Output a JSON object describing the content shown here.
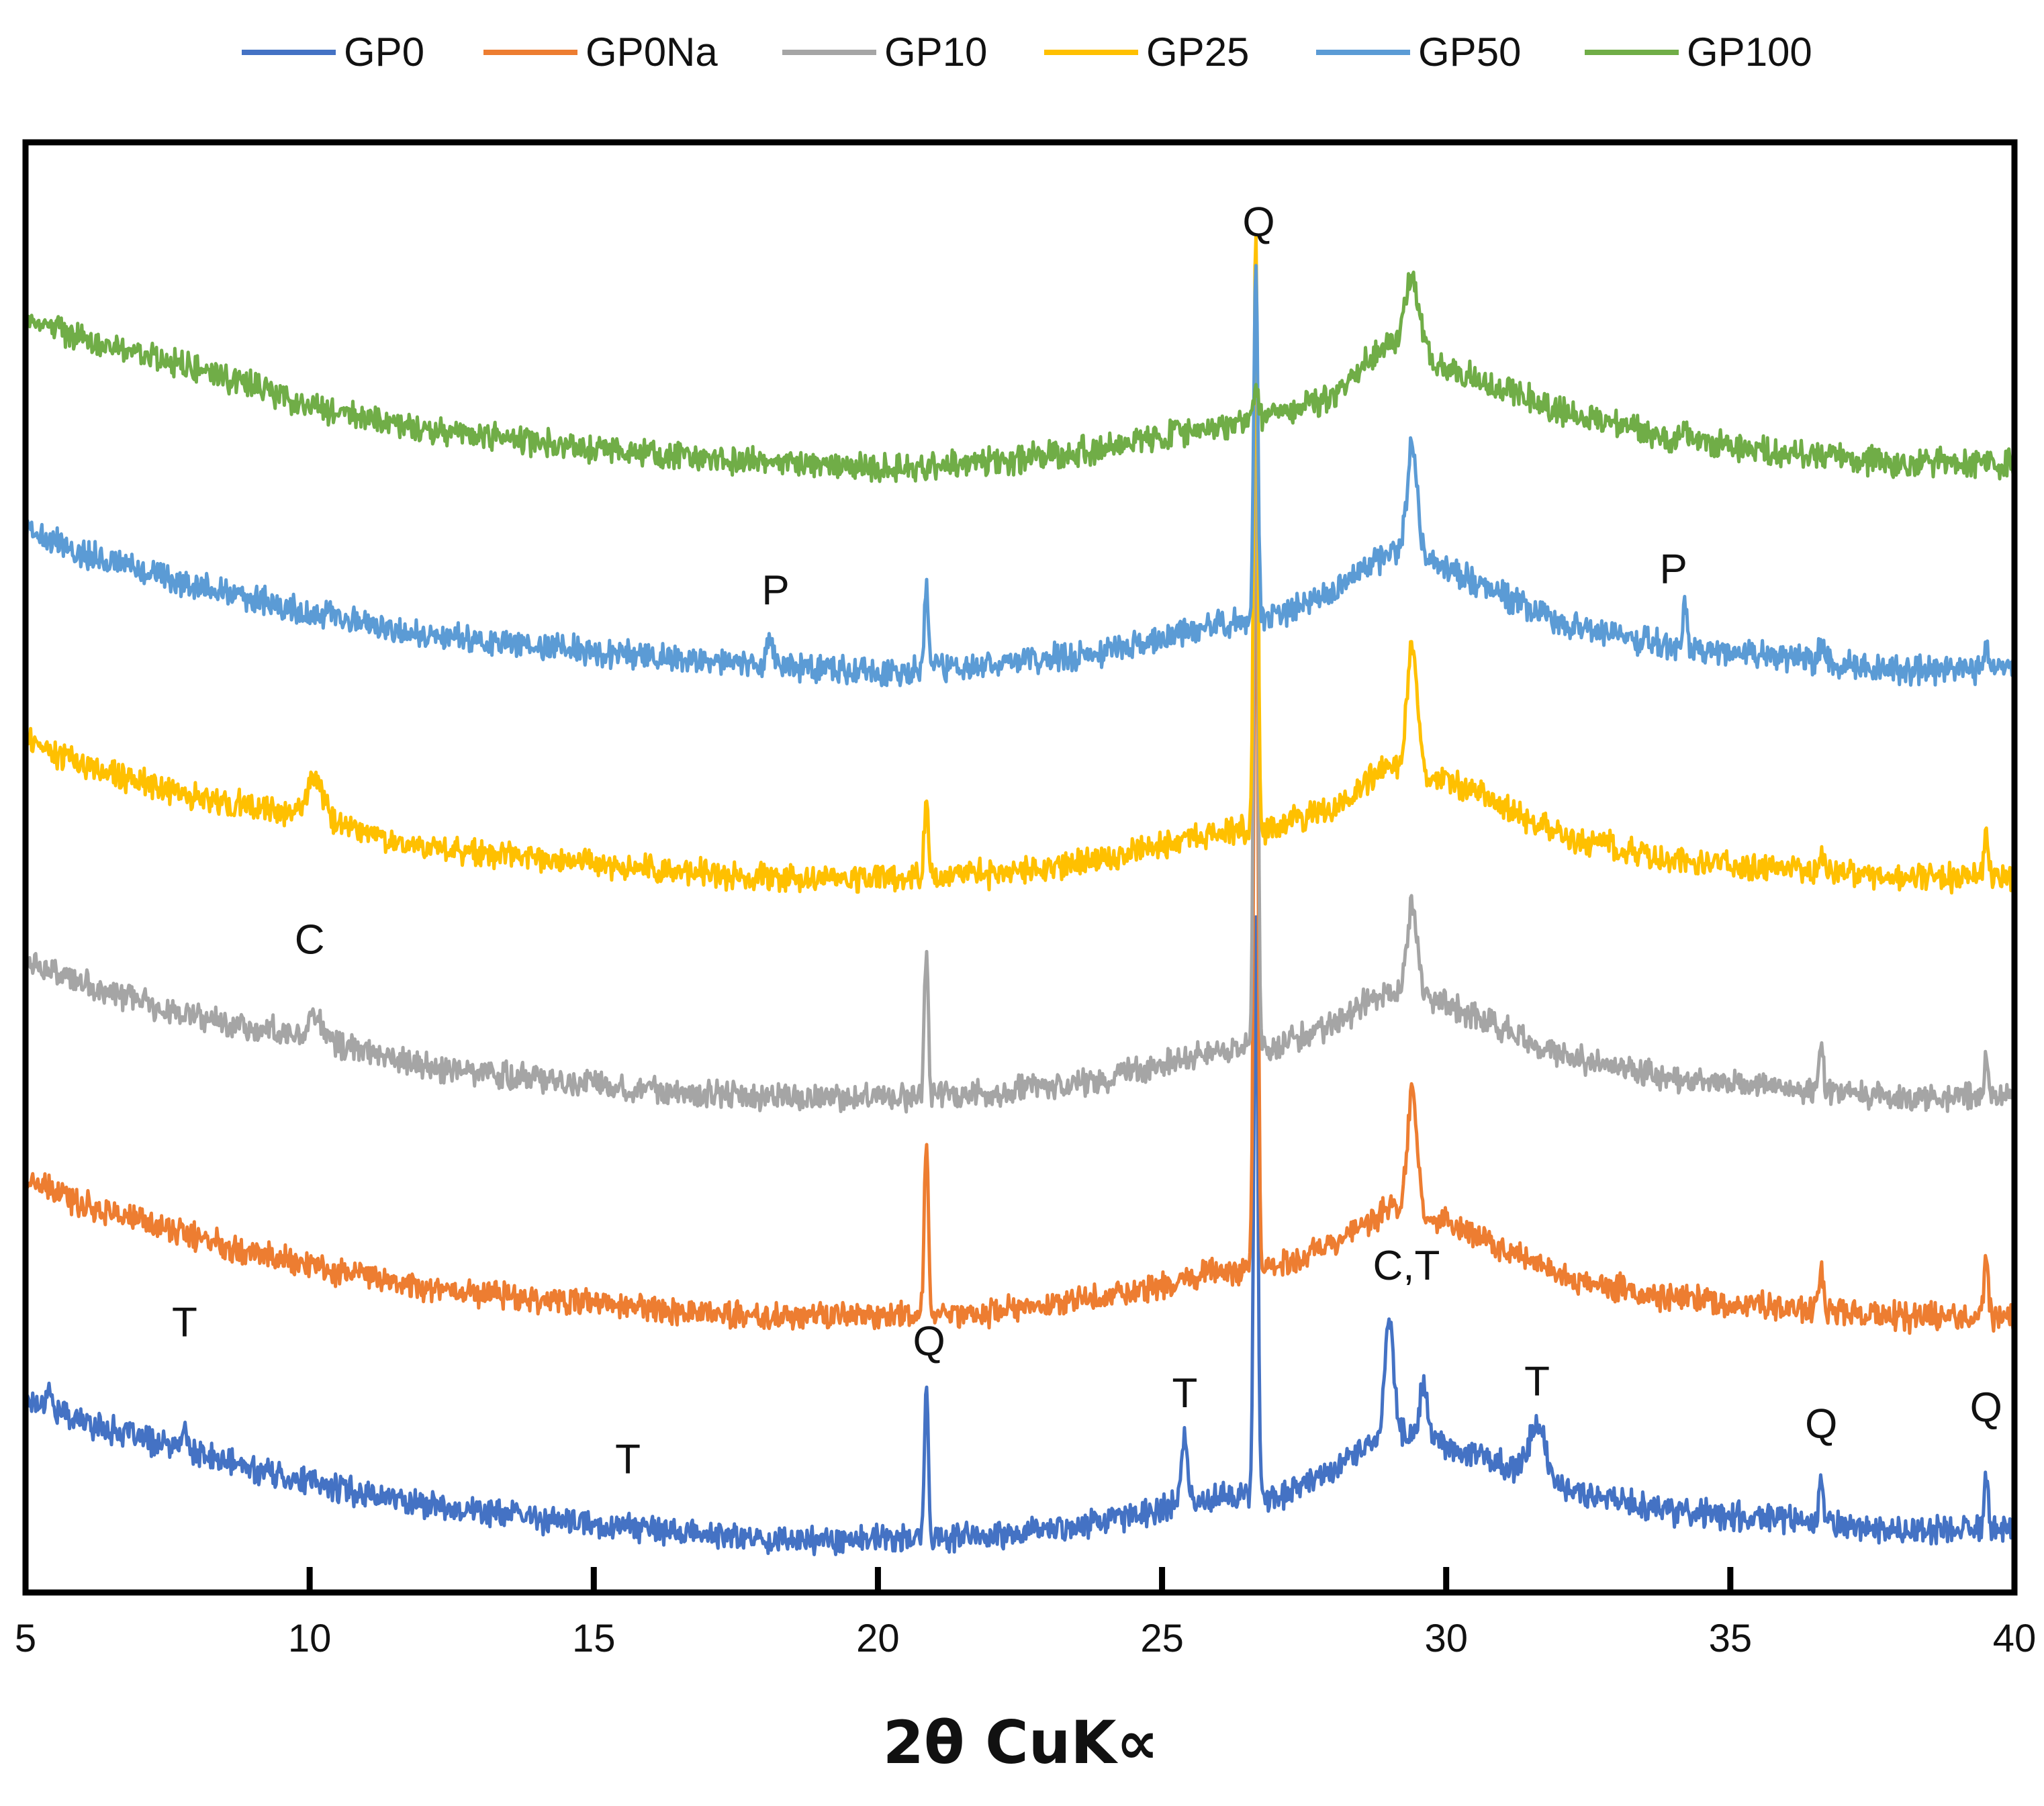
{
  "chart_data": {
    "type": "line",
    "title": "",
    "xlabel": "2θ CuK∝",
    "ylabel": "",
    "xlim": [
      5,
      40
    ],
    "ylim": [
      0,
      6
    ],
    "xticks": [
      5,
      10,
      15,
      20,
      25,
      30,
      35,
      40
    ],
    "xtick_labels": [
      "5",
      "10",
      "15",
      "20",
      "25",
      "30",
      "35",
      "40"
    ],
    "yaxis": "stacked intensity, no tick labels",
    "grid": false,
    "legend_position": "top",
    "series": [
      {
        "name": "GP0",
        "color": "#4472C4",
        "offset": 0.0,
        "baseline": [
          [
            5,
            0.72
          ],
          [
            6,
            0.62
          ],
          [
            8,
            0.48
          ],
          [
            10,
            0.36
          ],
          [
            12,
            0.27
          ],
          [
            15,
            0.18
          ],
          [
            18,
            0.12
          ],
          [
            20,
            0.12
          ],
          [
            22,
            0.13
          ],
          [
            24,
            0.2
          ],
          [
            26,
            0.3
          ],
          [
            27,
            0.3
          ],
          [
            28,
            0.42
          ],
          [
            29,
            0.58
          ],
          [
            30,
            0.52
          ],
          [
            32,
            0.34
          ],
          [
            34,
            0.24
          ],
          [
            36,
            0.2
          ],
          [
            38,
            0.16
          ],
          [
            40,
            0.17
          ]
        ],
        "peaks": [
          [
            5.4,
            0.1,
            0.08
          ],
          [
            7.8,
            0.08,
            0.12
          ],
          [
            15.6,
            0.05,
            0.1
          ],
          [
            20.85,
            0.62,
            0.07
          ],
          [
            25.4,
            0.28,
            0.12
          ],
          [
            26.65,
            2.5,
            0.07
          ],
          [
            29.0,
            0.48,
            0.15
          ],
          [
            29.6,
            0.22,
            0.15
          ],
          [
            31.6,
            0.22,
            0.3
          ],
          [
            36.6,
            0.2,
            0.07
          ],
          [
            39.5,
            0.25,
            0.07
          ]
        ]
      },
      {
        "name": "GP0Na",
        "color": "#ED7D31",
        "offset": 0.92,
        "baseline": [
          [
            5,
            0.72
          ],
          [
            6,
            0.62
          ],
          [
            8,
            0.48
          ],
          [
            10,
            0.36
          ],
          [
            12,
            0.27
          ],
          [
            15,
            0.2
          ],
          [
            18,
            0.14
          ],
          [
            20,
            0.15
          ],
          [
            22,
            0.16
          ],
          [
            24,
            0.22
          ],
          [
            26,
            0.34
          ],
          [
            27,
            0.35
          ],
          [
            28,
            0.45
          ],
          [
            29,
            0.6
          ],
          [
            30,
            0.54
          ],
          [
            32,
            0.32
          ],
          [
            34,
            0.22
          ],
          [
            36,
            0.18
          ],
          [
            38,
            0.14
          ],
          [
            40,
            0.15
          ]
        ],
        "peaks": [
          [
            20.85,
            0.72,
            0.07
          ],
          [
            26.65,
            3.5,
            0.07
          ],
          [
            29.4,
            0.5,
            0.18
          ],
          [
            36.6,
            0.2,
            0.07
          ],
          [
            39.5,
            0.28,
            0.07
          ]
        ]
      },
      {
        "name": "GP10",
        "color": "#A5A5A5",
        "offset": 1.85,
        "baseline": [
          [
            5,
            0.72
          ],
          [
            6,
            0.62
          ],
          [
            8,
            0.48
          ],
          [
            10,
            0.4
          ],
          [
            12,
            0.27
          ],
          [
            15,
            0.2
          ],
          [
            18,
            0.14
          ],
          [
            20,
            0.14
          ],
          [
            22,
            0.16
          ],
          [
            24,
            0.22
          ],
          [
            26,
            0.34
          ],
          [
            27,
            0.35
          ],
          [
            28,
            0.45
          ],
          [
            29,
            0.6
          ],
          [
            30,
            0.54
          ],
          [
            32,
            0.32
          ],
          [
            34,
            0.22
          ],
          [
            36,
            0.18
          ],
          [
            38,
            0.14
          ],
          [
            40,
            0.15
          ]
        ],
        "peaks": [
          [
            10.1,
            0.12,
            0.2
          ],
          [
            20.85,
            0.58,
            0.07
          ],
          [
            26.65,
            3.0,
            0.07
          ],
          [
            29.4,
            0.38,
            0.18
          ],
          [
            36.6,
            0.2,
            0.07
          ],
          [
            39.5,
            0.18,
            0.07
          ]
        ]
      },
      {
        "name": "GP25",
        "color": "#FFC000",
        "offset": 2.78,
        "baseline": [
          [
            5,
            0.72
          ],
          [
            6,
            0.62
          ],
          [
            8,
            0.48
          ],
          [
            10,
            0.4
          ],
          [
            12,
            0.27
          ],
          [
            15,
            0.2
          ],
          [
            18,
            0.14
          ],
          [
            20,
            0.14
          ],
          [
            22,
            0.16
          ],
          [
            24,
            0.22
          ],
          [
            26,
            0.34
          ],
          [
            27,
            0.35
          ],
          [
            28,
            0.45
          ],
          [
            29,
            0.62
          ],
          [
            30,
            0.56
          ],
          [
            32,
            0.32
          ],
          [
            34,
            0.22
          ],
          [
            36,
            0.18
          ],
          [
            38,
            0.14
          ],
          [
            40,
            0.15
          ]
        ],
        "peaks": [
          [
            10.1,
            0.16,
            0.3
          ],
          [
            20.85,
            0.3,
            0.07
          ],
          [
            26.65,
            2.55,
            0.07
          ],
          [
            29.4,
            0.52,
            0.18
          ],
          [
            36.6,
            0.1,
            0.07
          ],
          [
            39.5,
            0.2,
            0.07
          ]
        ]
      },
      {
        "name": "GP50",
        "color": "#5B9BD5",
        "offset": 3.68,
        "baseline": [
          [
            5,
            0.72
          ],
          [
            6,
            0.62
          ],
          [
            8,
            0.48
          ],
          [
            10,
            0.36
          ],
          [
            12,
            0.27
          ],
          [
            15,
            0.2
          ],
          [
            18,
            0.14
          ],
          [
            20,
            0.12
          ],
          [
            22,
            0.14
          ],
          [
            24,
            0.2
          ],
          [
            26,
            0.32
          ],
          [
            27,
            0.35
          ],
          [
            28,
            0.45
          ],
          [
            29,
            0.62
          ],
          [
            30,
            0.56
          ],
          [
            32,
            0.32
          ],
          [
            34,
            0.22
          ],
          [
            36,
            0.18
          ],
          [
            38,
            0.12
          ],
          [
            40,
            0.13
          ]
        ],
        "peaks": [
          [
            18.1,
            0.12,
            0.1
          ],
          [
            20.85,
            0.33,
            0.07
          ],
          [
            26.65,
            1.5,
            0.07
          ],
          [
            29.4,
            0.48,
            0.18
          ],
          [
            34.2,
            0.2,
            0.07
          ],
          [
            36.6,
            0.08,
            0.07
          ],
          [
            39.5,
            0.08,
            0.07
          ]
        ]
      },
      {
        "name": "GP100",
        "color": "#70AD47",
        "offset": 4.58,
        "baseline": [
          [
            5,
            0.72
          ],
          [
            6,
            0.62
          ],
          [
            8,
            0.5
          ],
          [
            10,
            0.34
          ],
          [
            12,
            0.24
          ],
          [
            15,
            0.16
          ],
          [
            18,
            0.1
          ],
          [
            20,
            0.08
          ],
          [
            22,
            0.1
          ],
          [
            24,
            0.16
          ],
          [
            26,
            0.26
          ],
          [
            27,
            0.3
          ],
          [
            28,
            0.38
          ],
          [
            29,
            0.62
          ],
          [
            30,
            0.5
          ],
          [
            32,
            0.32
          ],
          [
            34,
            0.2
          ],
          [
            36,
            0.14
          ],
          [
            38,
            0.1
          ],
          [
            40,
            0.1
          ]
        ],
        "peaks": [
          [
            18.1,
            0.06,
            0.1
          ],
          [
            26.65,
            0.12,
            0.07
          ],
          [
            29.4,
            0.32,
            0.25
          ],
          [
            34.2,
            0.05,
            0.1
          ]
        ]
      }
    ],
    "peak_labels": [
      {
        "text": "T",
        "x": 7.8,
        "y": 0.98
      },
      {
        "text": "T",
        "x": 15.6,
        "y": 0.4
      },
      {
        "text": "Q",
        "x": 20.9,
        "y": 0.9
      },
      {
        "text": "T",
        "x": 25.4,
        "y": 0.68
      },
      {
        "text": "C,T",
        "x": 29.3,
        "y": 1.22
      },
      {
        "text": "T",
        "x": 31.6,
        "y": 0.73
      },
      {
        "text": "Q",
        "x": 36.6,
        "y": 0.55
      },
      {
        "text": "Q",
        "x": 39.5,
        "y": 0.62
      },
      {
        "text": "C",
        "x": 10.0,
        "y": 2.6
      },
      {
        "text": "P",
        "x": 18.2,
        "y": 4.08
      },
      {
        "text": "P",
        "x": 34.0,
        "y": 4.17
      },
      {
        "text": "Q",
        "x": 26.7,
        "y": 5.64
      }
    ]
  }
}
